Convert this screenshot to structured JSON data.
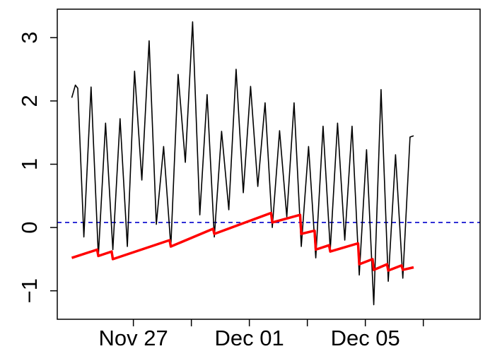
{
  "chart_data": {
    "type": "line",
    "title": "",
    "xlabel": "",
    "ylabel": "",
    "x_axis": {
      "kind": "date",
      "range": [
        "2024-11-24T09:00",
        "2024-12-08T23:00"
      ],
      "ticks": [
        {
          "date": "2024-11-27",
          "label": "Nov 27"
        },
        {
          "date": "2024-11-29",
          "label": ""
        },
        {
          "date": "2024-12-01",
          "label": "Dec 01"
        },
        {
          "date": "2024-12-03",
          "label": ""
        },
        {
          "date": "2024-12-05",
          "label": "Dec 05"
        },
        {
          "date": "2024-12-07",
          "label": ""
        }
      ]
    },
    "y_axis": {
      "range": [
        -1.45,
        3.45
      ],
      "ticks": [
        {
          "value": -1,
          "label": "−1"
        },
        {
          "value": 0,
          "label": "0"
        },
        {
          "value": 1,
          "label": "1"
        },
        {
          "value": 2,
          "label": "2"
        },
        {
          "value": 3,
          "label": "3"
        }
      ]
    },
    "grid": false,
    "legend": "none",
    "series": [
      {
        "style": "black-thin",
        "color": "#000000",
        "points": [
          [
            "2024-11-24T21:00",
            2.05
          ],
          [
            "2024-11-25T00:00",
            2.25
          ],
          [
            "2024-11-25T02:00",
            2.2
          ],
          [
            "2024-11-25T07:00",
            -0.15
          ],
          [
            "2024-11-25T13:00",
            2.22
          ],
          [
            "2024-11-25T19:00",
            -0.45
          ],
          [
            "2024-11-26T01:00",
            1.65
          ],
          [
            "2024-11-26T07:00",
            -0.35
          ],
          [
            "2024-11-26T13:00",
            1.72
          ],
          [
            "2024-11-26T19:00",
            -0.3
          ],
          [
            "2024-11-27T01:00",
            2.47
          ],
          [
            "2024-11-27T07:00",
            0.75
          ],
          [
            "2024-11-27T13:00",
            2.95
          ],
          [
            "2024-11-27T19:00",
            0.05
          ],
          [
            "2024-11-28T01:00",
            1.28
          ],
          [
            "2024-11-28T07:00",
            -0.3
          ],
          [
            "2024-11-28T13:00",
            2.42
          ],
          [
            "2024-11-28T19:00",
            1.03
          ],
          [
            "2024-11-29T01:00",
            3.25
          ],
          [
            "2024-11-29T07:00",
            0.2
          ],
          [
            "2024-11-29T13:00",
            2.1
          ],
          [
            "2024-11-29T19:00",
            -0.15
          ],
          [
            "2024-11-30T01:00",
            1.52
          ],
          [
            "2024-11-30T07:00",
            0.28
          ],
          [
            "2024-11-30T13:00",
            2.5
          ],
          [
            "2024-11-30T19:00",
            0.55
          ],
          [
            "2024-12-01T01:00",
            2.23
          ],
          [
            "2024-12-01T07:00",
            0.65
          ],
          [
            "2024-12-01T13:00",
            1.97
          ],
          [
            "2024-12-01T19:00",
            0.0
          ],
          [
            "2024-12-02T01:00",
            1.53
          ],
          [
            "2024-12-02T07:00",
            0.17
          ],
          [
            "2024-12-02T13:00",
            1.97
          ],
          [
            "2024-12-02T19:00",
            -0.3
          ],
          [
            "2024-12-03T01:00",
            1.28
          ],
          [
            "2024-12-03T07:00",
            -0.48
          ],
          [
            "2024-12-03T13:00",
            1.6
          ],
          [
            "2024-12-03T19:00",
            -0.35
          ],
          [
            "2024-12-04T01:00",
            1.65
          ],
          [
            "2024-12-04T07:00",
            -0.2
          ],
          [
            "2024-12-04T13:00",
            1.6
          ],
          [
            "2024-12-04T19:00",
            -0.75
          ],
          [
            "2024-12-05T01:00",
            1.23
          ],
          [
            "2024-12-05T07:00",
            -1.22
          ],
          [
            "2024-12-05T13:00",
            2.18
          ],
          [
            "2024-12-05T19:00",
            -0.85
          ],
          [
            "2024-12-06T01:00",
            1.15
          ],
          [
            "2024-12-06T07:00",
            -0.8
          ],
          [
            "2024-12-06T13:00",
            1.43
          ],
          [
            "2024-12-06T16:00",
            1.45
          ]
        ]
      },
      {
        "style": "red-thick",
        "color": "#ff0000",
        "points": [
          [
            "2024-11-24T21:00",
            -0.48
          ],
          [
            "2024-11-25T18:00",
            -0.35
          ],
          [
            "2024-11-25T19:00",
            -0.45
          ],
          [
            "2024-11-26T06:00",
            -0.38
          ],
          [
            "2024-11-26T07:00",
            -0.5
          ],
          [
            "2024-11-28T06:00",
            -0.2
          ],
          [
            "2024-11-28T07:00",
            -0.3
          ],
          [
            "2024-11-29T18:00",
            -0.02
          ],
          [
            "2024-11-29T19:00",
            -0.1
          ],
          [
            "2024-12-01T18:00",
            0.23
          ],
          [
            "2024-12-01T19:00",
            0.08
          ],
          [
            "2024-12-02T18:00",
            0.2
          ],
          [
            "2024-12-02T19:00",
            -0.1
          ],
          [
            "2024-12-03T06:00",
            -0.05
          ],
          [
            "2024-12-03T07:00",
            -0.35
          ],
          [
            "2024-12-03T18:00",
            -0.28
          ],
          [
            "2024-12-03T19:00",
            -0.38
          ],
          [
            "2024-12-04T18:00",
            -0.25
          ],
          [
            "2024-12-04T19:00",
            -0.58
          ],
          [
            "2024-12-05T06:00",
            -0.5
          ],
          [
            "2024-12-05T07:00",
            -0.67
          ],
          [
            "2024-12-05T18:00",
            -0.58
          ],
          [
            "2024-12-05T19:00",
            -0.68
          ],
          [
            "2024-12-06T06:00",
            -0.6
          ],
          [
            "2024-12-06T07:00",
            -0.67
          ],
          [
            "2024-12-06T16:00",
            -0.63
          ]
        ]
      }
    ],
    "reference_lines": [
      {
        "orientation": "horizontal",
        "y": 0.08,
        "color": "#0000cc",
        "dash": "dashed"
      }
    ]
  }
}
